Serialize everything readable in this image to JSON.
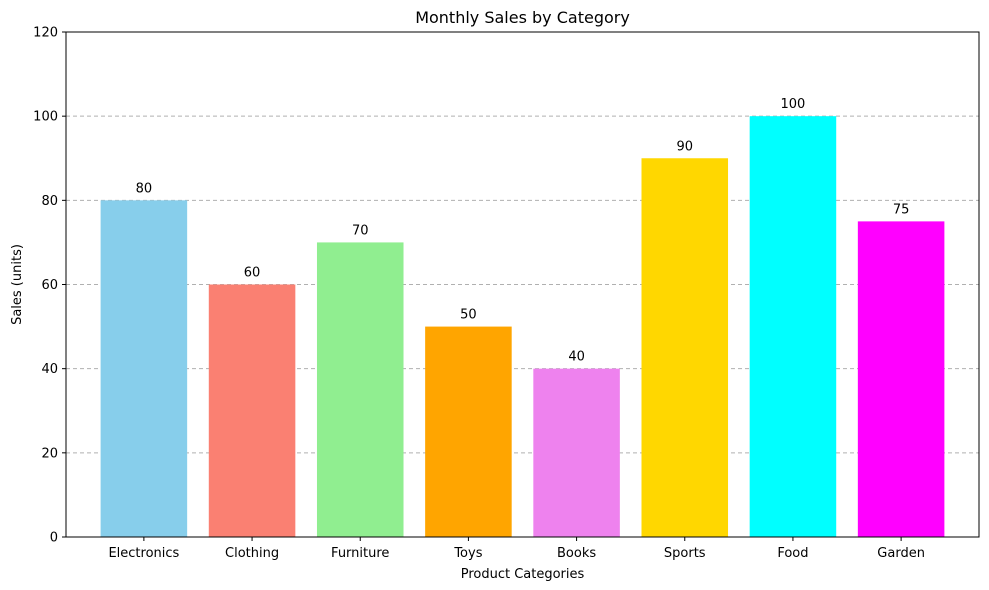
{
  "chart_data": {
    "type": "bar",
    "title": "Monthly Sales by Category",
    "xlabel": "Product Categories",
    "ylabel": "Sales (units)",
    "categories": [
      "Electronics",
      "Clothing",
      "Furniture",
      "Toys",
      "Books",
      "Sports",
      "Food",
      "Garden"
    ],
    "values": [
      80,
      60,
      70,
      50,
      40,
      90,
      100,
      75
    ],
    "colors": [
      "#87ceeb",
      "#fa8072",
      "#90ee90",
      "#ffa500",
      "#ee82ee",
      "#ffd700",
      "#00ffff",
      "#ff00ff"
    ],
    "ylim": [
      0,
      120
    ],
    "yticks": [
      0,
      20,
      40,
      60,
      80,
      100,
      120
    ],
    "grid": "y-dashed",
    "legend": "none",
    "data_labels": true
  }
}
